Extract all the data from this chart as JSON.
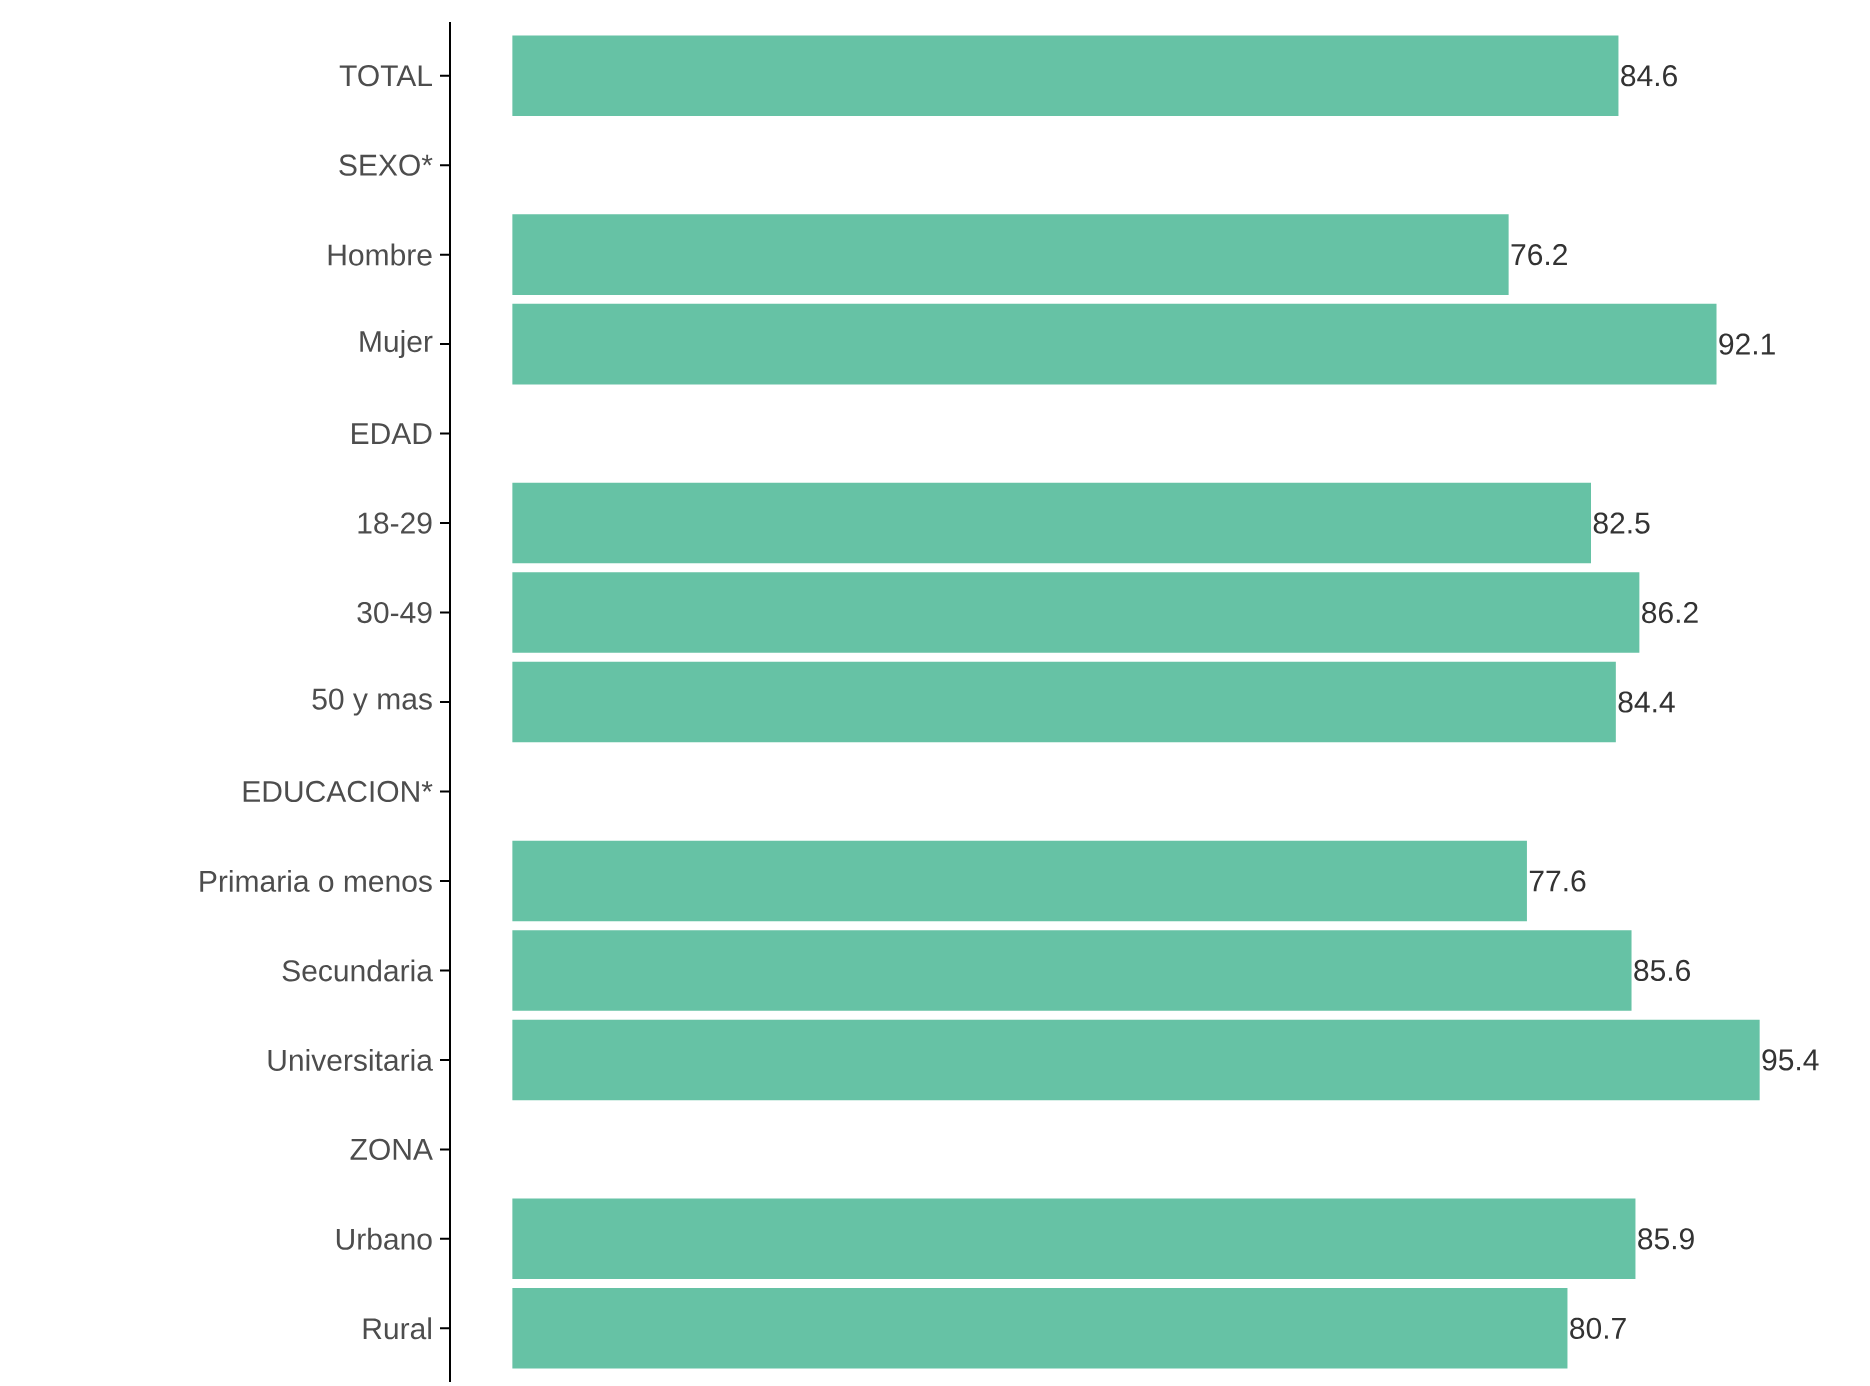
{
  "chart_data": {
    "type": "bar",
    "orientation": "horizontal",
    "categories": [
      "TOTAL",
      "SEXO*",
      "Hombre",
      "Mujer",
      "EDAD",
      "18-29",
      "30-49",
      "50 y mas",
      "EDUCACION*",
      "Primaria o menos",
      "Secundaria",
      "Universitaria",
      "ZONA",
      "Urbano",
      "Rural"
    ],
    "values": [
      84.6,
      null,
      76.2,
      92.1,
      null,
      82.5,
      86.2,
      84.4,
      null,
      77.6,
      85.6,
      95.4,
      null,
      85.9,
      80.7
    ],
    "color": "#66c2a5",
    "data_labels": true,
    "tick_labels": "y"
  }
}
